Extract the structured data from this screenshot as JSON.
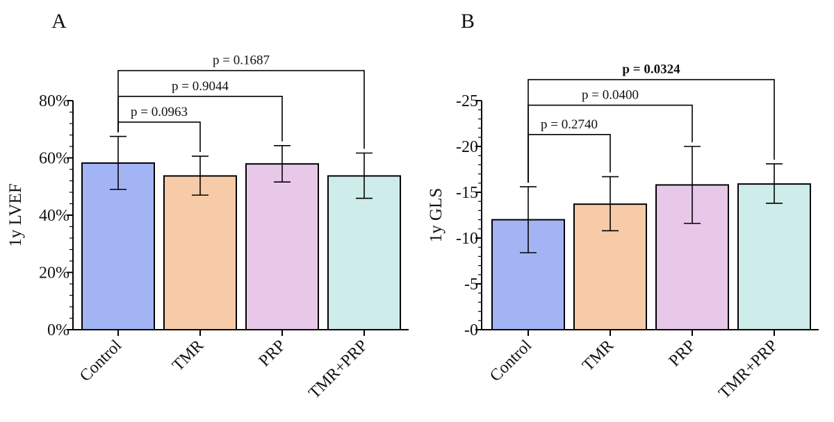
{
  "chart_data": [
    {
      "panel_label": "A",
      "type": "bar",
      "categories": [
        "Control",
        "TMR",
        "PRP",
        "TMR+PRP"
      ],
      "values": [
        58.2,
        53.7,
        57.9,
        53.7
      ],
      "error_low": [
        49.0,
        47.0,
        51.6,
        45.9
      ],
      "error_high": [
        67.5,
        60.6,
        64.3,
        61.7
      ],
      "ylabel": "1y LVEF",
      "ylim": [
        0,
        80
      ],
      "yticks": [
        0,
        20,
        40,
        60,
        80
      ],
      "ytick_labels": [
        "0%",
        "20%",
        "40%",
        "60%",
        "80%"
      ],
      "minor_ticks_per_major": 5,
      "reversed_y": false,
      "colors": [
        "#a3b4f5",
        "#f8cba8",
        "#e8c8e8",
        "#cdecea"
      ],
      "comparisons": [
        {
          "from": 0,
          "to": 1,
          "label": "p = 0.0963",
          "bold": false,
          "level": 72.5
        },
        {
          "from": 0,
          "to": 2,
          "label": "p = 0.9044",
          "bold": false,
          "level": 81.5
        },
        {
          "from": 0,
          "to": 3,
          "label": "p = 0.1687",
          "bold": false,
          "level": 90.5
        }
      ]
    },
    {
      "panel_label": "B",
      "type": "bar",
      "categories": [
        "Control",
        "TMR",
        "PRP",
        "TMR+PRP"
      ],
      "values": [
        -12.0,
        -13.7,
        -15.8,
        -15.9
      ],
      "error_low": [
        -8.4,
        -10.8,
        -11.6,
        -13.8
      ],
      "error_high": [
        -15.6,
        -16.7,
        -20.0,
        -18.1
      ],
      "ylabel": "1y GLS",
      "ylim": [
        0,
        -25
      ],
      "yticks": [
        0,
        -5,
        -10,
        -15,
        -20,
        -25
      ],
      "ytick_labels": [
        "-0",
        "-5",
        "-10",
        "-15",
        "-20",
        "-25"
      ],
      "minor_ticks_per_major": 5,
      "reversed_y": true,
      "colors": [
        "#a3b4f5",
        "#f8cba8",
        "#e8c8e8",
        "#cdecea"
      ],
      "comparisons": [
        {
          "from": 0,
          "to": 1,
          "label": "p = 0.2740",
          "bold": false,
          "level": -21.3
        },
        {
          "from": 0,
          "to": 2,
          "label": "p = 0.0400",
          "bold": false,
          "level": -24.5
        },
        {
          "from": 0,
          "to": 3,
          "label": "p = 0.0324",
          "bold": true,
          "level": -27.3
        }
      ]
    }
  ]
}
